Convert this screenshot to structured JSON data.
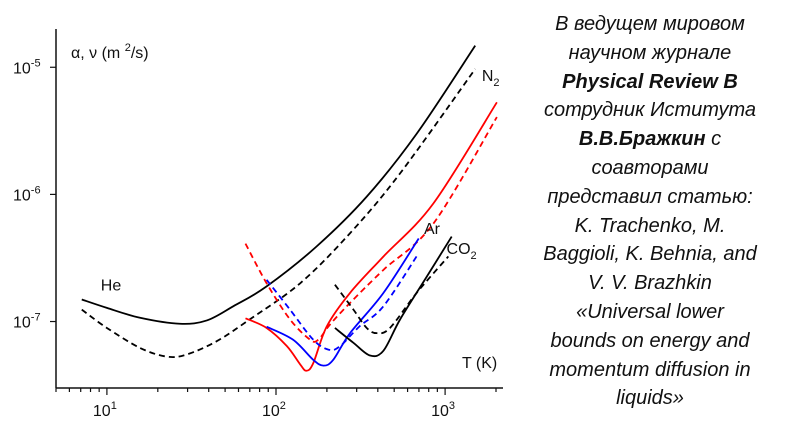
{
  "chart_data": {
    "type": "line",
    "xscale": "log",
    "yscale": "log",
    "xlim": [
      5,
      2200
    ],
    "ylim": [
      3e-08,
      2e-05
    ],
    "xlabel": "T (K)",
    "ylabel": "α, ν (m²/s)",
    "x_ticks": [
      {
        "value": 10,
        "base": "10",
        "exp": "1"
      },
      {
        "value": 100,
        "base": "10",
        "exp": "2"
      },
      {
        "value": 1000,
        "base": "10",
        "exp": "3"
      }
    ],
    "y_ticks": [
      {
        "value": 1e-05,
        "base": "10",
        "exp": "-5"
      },
      {
        "value": 1e-06,
        "base": "10",
        "exp": "-6"
      },
      {
        "value": 1e-07,
        "base": "10",
        "exp": "-7"
      }
    ],
    "grid": false,
    "series": [
      {
        "name": "He solid",
        "color": "#000000",
        "dash": false,
        "x": [
          7.1,
          10,
          15.7,
          27,
          39,
          56,
          88,
          174,
          344,
          679,
          1507
        ],
        "y": [
          1.49e-07,
          1.28e-07,
          1.07e-07,
          9.6e-08,
          1.02e-07,
          1.32e-07,
          1.89e-07,
          3.9e-07,
          9.6e-07,
          3e-06,
          1.48e-05
        ]
      },
      {
        "name": "He dashed",
        "color": "#000000",
        "dash": true,
        "x": [
          7.1,
          10,
          15.7,
          22.5,
          29.6,
          44.6,
          70,
          139,
          274,
          541,
          1507
        ],
        "y": [
          1.24e-07,
          8.9e-08,
          6.2e-08,
          5.3e-08,
          5.5e-08,
          7e-08,
          1.04e-07,
          2e-07,
          4.95e-07,
          1.46e-06,
          9.7e-06
        ]
      },
      {
        "name": "N2 solid",
        "color": "#ff0000",
        "dash": false,
        "x": [
          66,
          88,
          116,
          139,
          151,
          166,
          200,
          274,
          432,
          853,
          2024
        ],
        "y": [
          1.06e-07,
          8.9e-08,
          6.4e-08,
          4.6e-08,
          4.1e-08,
          4.7e-08,
          9.2e-08,
          1.68e-07,
          3.25e-07,
          8.5e-07,
          5.3e-06
        ]
      },
      {
        "name": "N2 dashed",
        "color": "#ff0000",
        "dash": true,
        "x": [
          66,
          88,
          121,
          159,
          178,
          209,
          274,
          432,
          853,
          2024
        ],
        "y": [
          4.1e-07,
          2e-07,
          1.04e-07,
          7.2e-08,
          7.2e-08,
          9.5e-08,
          1.4e-07,
          2.55e-07,
          5.9e-07,
          4.06e-06
        ]
      },
      {
        "name": "Ar solid",
        "color": "#0000ff",
        "dash": false,
        "x": [
          88,
          126,
          166,
          191,
          218,
          274,
          432,
          698
        ],
        "y": [
          9.1e-08,
          7.2e-08,
          5e-08,
          4.5e-08,
          5e-08,
          8.1e-08,
          1.68e-07,
          4.5e-07
        ]
      },
      {
        "name": "Ar dashed",
        "color": "#0000ff",
        "dash": true,
        "x": [
          88,
          121,
          166,
          205,
          239,
          313,
          432,
          698
        ],
        "y": [
          2.13e-07,
          1.24e-07,
          7.2e-08,
          6e-08,
          6.4e-08,
          9.2e-08,
          1.32e-07,
          3.45e-07
        ]
      },
      {
        "name": "CO2 solid",
        "color": "#000000",
        "dash": false,
        "x": [
          223,
          287,
          360,
          432,
          542,
          780,
          1094
        ],
        "y": [
          8.9e-08,
          6.8e-08,
          5.4e-08,
          5.9e-08,
          1.04e-07,
          2.26e-07,
          4.66e-07
        ]
      },
      {
        "name": "CO2 dashed",
        "color": "#000000",
        "dash": true,
        "x": [
          223,
          287,
          344,
          395,
          472,
          679,
          1045
        ],
        "y": [
          1.95e-07,
          1.24e-07,
          8.9e-08,
          8.1e-08,
          8.9e-08,
          1.68e-07,
          3.25e-07
        ]
      }
    ],
    "annotations": [
      {
        "text": "He",
        "sub": "",
        "x": 9.2,
        "y": 1.75e-07
      },
      {
        "text": "N",
        "sub": "2",
        "x": 1650,
        "y": 7.8e-06
      },
      {
        "text": "Ar",
        "sub": "",
        "x": 750,
        "y": 4.9e-07
      },
      {
        "text": "CO",
        "sub": "2",
        "x": 1020,
        "y": 3.4e-07
      }
    ]
  },
  "article": {
    "line1": "В ведущем мировом",
    "line2": "научном журнале",
    "journal": "Physical Review B",
    "line4": "сотрудник Иститута",
    "author_bold": "В.В.Бражкин",
    "author_suffix": " с",
    "line6": "соавторами",
    "line7": "представил статью:",
    "line8": "K. Trachenko, M.",
    "line9": "Baggioli, K. Behnia, and",
    "line10": "V. V. Brazhkin",
    "line11": "«Universal lower",
    "line12": "bounds on energy and",
    "line13": "momentum diffusion in",
    "line14": "liquids»"
  }
}
